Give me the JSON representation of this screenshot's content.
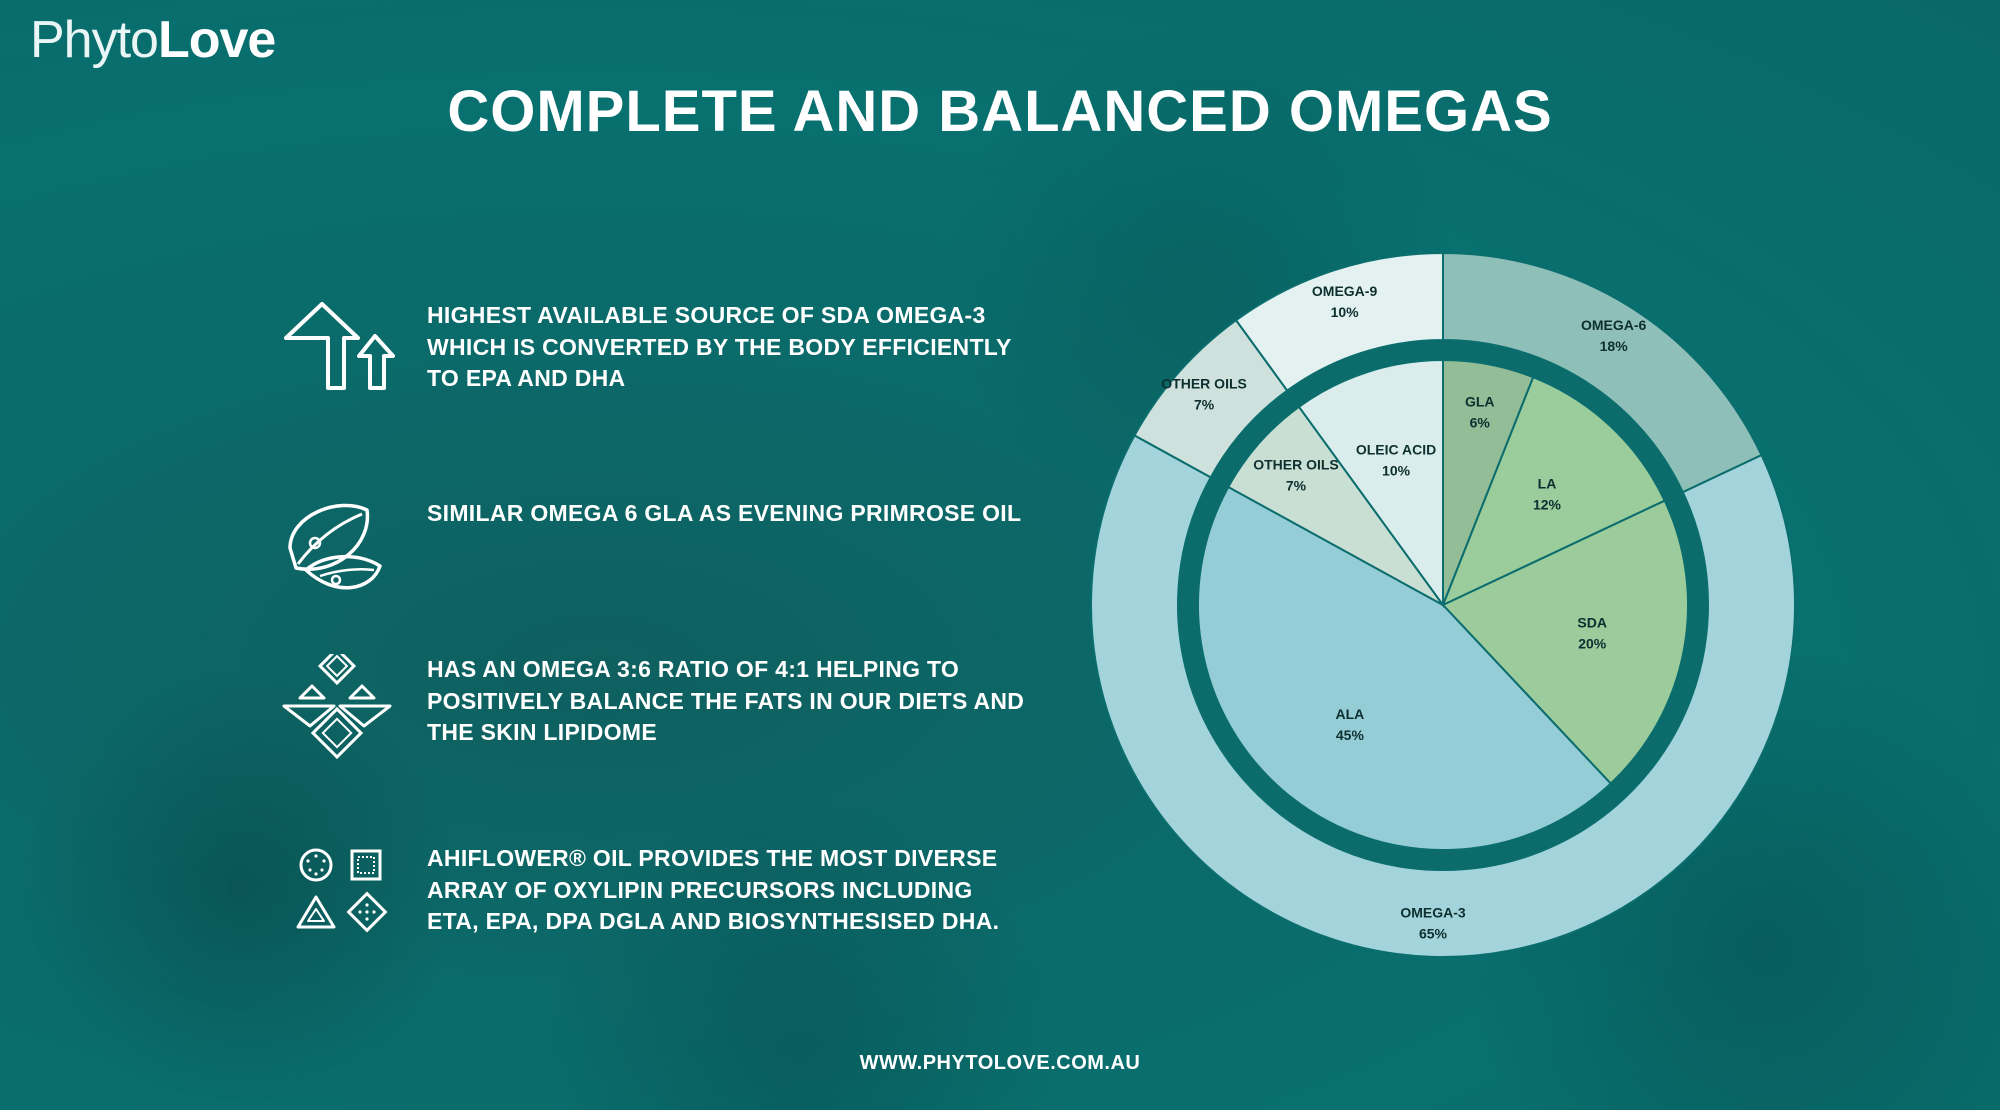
{
  "brand": {
    "logo_light": "Phyto",
    "logo_bold": "Love"
  },
  "title": "COMPLETE AND BALANCED OMEGAS",
  "features": [
    {
      "icon": "double-up-arrow-icon",
      "text": "HIGHEST AVAILABLE SOURCE OF SDA OMEGA-3 WHICH IS CONVERTED BY THE BODY EFFICIENTLY TO EPA AND DHA"
    },
    {
      "icon": "leaves-icon",
      "text": "SIMILAR OMEGA 6 GLA AS EVENING PRIMROSE OIL"
    },
    {
      "icon": "balance-diamonds-icon",
      "text": "HAS AN OMEGA 3:6 RATIO OF 4:1 HELPING TO POSITIVELY BALANCE THE FATS IN OUR DIETS AND THE SKIN LIPIDOME"
    },
    {
      "icon": "shapes-grid-icon",
      "text": "AHIFLOWER® OIL PROVIDES THE MOST DIVERSE ARRAY OF OXYLIPIN PRECURSORS  INCLUDING ETA, EPA, DPA DGLA AND BIOSYNTHESISED DHA."
    }
  ],
  "footer_url": "WWW.PHYTOLOVE.COM.AU",
  "chart_data": {
    "type": "pie",
    "style": "nested donut (inner pie + outer ring)",
    "outer_ring": {
      "slices": [
        {
          "label": "OMEGA-6",
          "value": 18,
          "display": "18%",
          "color": "#8ebfb8"
        },
        {
          "label": "OMEGA-3",
          "value": 65,
          "display": "65%",
          "color": "#a3d4dc"
        },
        {
          "label": "OTHER OILS",
          "value": 7,
          "display": "7%",
          "color": "#cfe1dc"
        },
        {
          "label": "OMEGA-9",
          "value": 10,
          "display": "10%",
          "color": "#e3f1f1"
        }
      ]
    },
    "inner_pie": {
      "slices": [
        {
          "label": "GLA",
          "value": 6,
          "display": "6%",
          "color": "#92bd97"
        },
        {
          "label": "LA",
          "value": 12,
          "display": "12%",
          "color": "#9acc9c"
        },
        {
          "label": "SDA",
          "value": 20,
          "display": "20%",
          "color": "#9dcc9c"
        },
        {
          "label": "ALA",
          "value": 45,
          "display": "45%",
          "color": "#95cdd6"
        },
        {
          "label": "OTHER OILS",
          "value": 7,
          "display": "7%",
          "color": "#c9dfd3"
        },
        {
          "label": "OLEIC ACID",
          "value": 10,
          "display": "10%",
          "color": "#daedec"
        }
      ]
    }
  }
}
